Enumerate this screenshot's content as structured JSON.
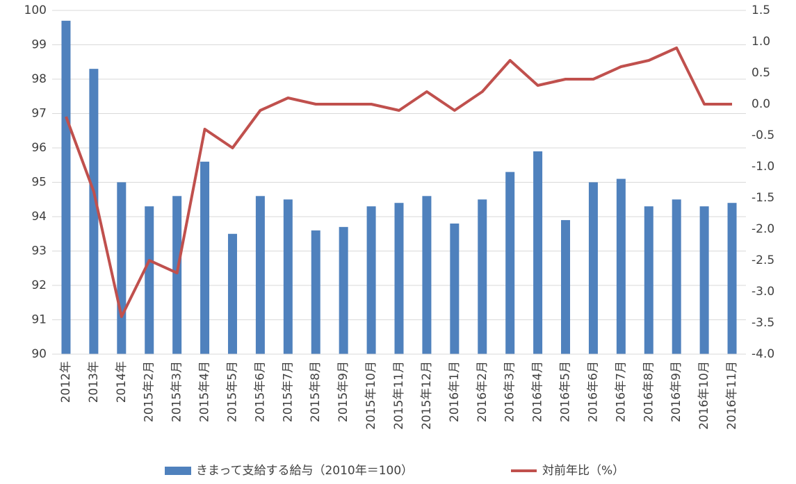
{
  "chart_data": {
    "type": "bar_line",
    "categories": [
      "2012年",
      "2013年",
      "2014年",
      "2015年2月",
      "2015年3月",
      "2015年4月",
      "2015年5月",
      "2015年6月",
      "2015年7月",
      "2015年8月",
      "2015年9月",
      "2015年10月",
      "2015年11月",
      "2015年12月",
      "2016年1月",
      "2016年2月",
      "2016年3月",
      "2016年4月",
      "2016年5月",
      "2016年6月",
      "2016年7月",
      "2016年8月",
      "2016年9月",
      "2016年10月",
      "2016年11月"
    ],
    "series": [
      {
        "name": "きまって支給する給与（2010年＝100）",
        "type": "bar",
        "color": "#4f81bd",
        "values": [
          99.7,
          98.3,
          95.0,
          94.3,
          94.6,
          95.6,
          93.5,
          94.6,
          94.5,
          93.6,
          93.7,
          94.3,
          94.4,
          94.6,
          93.8,
          94.5,
          95.3,
          95.9,
          93.9,
          95.0,
          95.1,
          94.3,
          94.5,
          94.3,
          94.4
        ]
      },
      {
        "name": "対前年比（%）",
        "type": "line",
        "axis": "y2",
        "color": "#c0504d",
        "values": [
          -0.2,
          -1.4,
          -3.4,
          -2.5,
          -2.7,
          -0.4,
          -0.7,
          -0.1,
          0.1,
          0.0,
          0.0,
          0.0,
          -0.1,
          0.2,
          -0.1,
          0.2,
          0.7,
          0.3,
          0.4,
          0.4,
          0.6,
          0.7,
          0.9,
          0.0,
          0.0
        ]
      }
    ],
    "ylim": [
      90,
      100
    ],
    "yticks": [
      90,
      91,
      92,
      93,
      94,
      95,
      96,
      97,
      98,
      99,
      100
    ],
    "y2lim": [
      -4,
      1.5
    ],
    "y2ticks": [
      {
        "value": -4,
        "label": "-4.0"
      },
      -3.5,
      {
        "value": -3,
        "label": "-3.0"
      },
      -2.5,
      {
        "value": -2,
        "label": "-2.0"
      },
      -1.5,
      {
        "value": -1,
        "label": "-1.0"
      },
      -0.5,
      {
        "value": 0,
        "label": "0.0"
      },
      0.5,
      {
        "value": 1,
        "label": "1.0"
      },
      1.5
    ],
    "grid": true,
    "legend": "bottom"
  }
}
